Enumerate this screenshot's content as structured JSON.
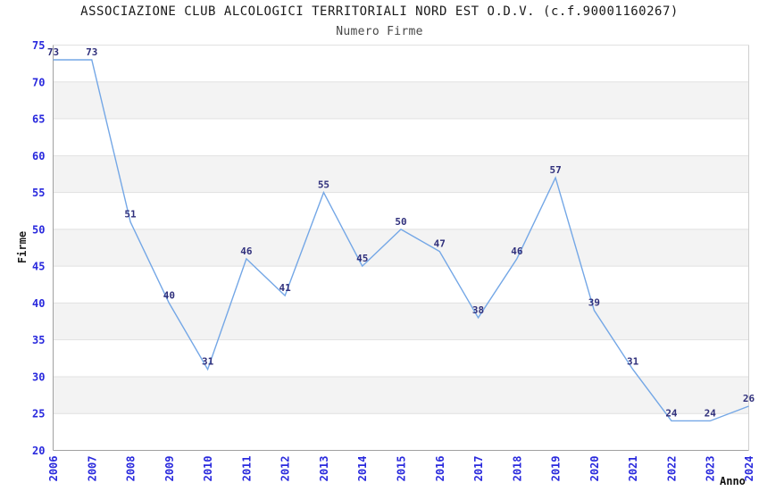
{
  "chart_data": {
    "type": "line",
    "title": "ASSOCIAZIONE CLUB ALCOLOGICI TERRITORIALI NORD EST O.D.V. (c.f.90001160267)",
    "subtitle": "Numero Firme",
    "xlabel": "Anno",
    "ylabel": "Firme",
    "x": [
      "2006",
      "2007",
      "2008",
      "2009",
      "2010",
      "2011",
      "2012",
      "2013",
      "2014",
      "2015",
      "2016",
      "2017",
      "2018",
      "2019",
      "2020",
      "2021",
      "2022",
      "2023",
      "2024"
    ],
    "series": [
      {
        "name": "Numero Firme",
        "values": [
          73,
          73,
          51,
          40,
          31,
          46,
          41,
          55,
          45,
          50,
          47,
          38,
          46,
          57,
          39,
          31,
          24,
          24,
          26
        ]
      }
    ],
    "ylim": [
      20,
      75
    ],
    "ytick_step": 5,
    "yticks": [
      20,
      25,
      30,
      35,
      40,
      45,
      50,
      55,
      60,
      65,
      70,
      75
    ],
    "grid": "horizontal-on",
    "bands": "alternating white/gray every 5 units from top",
    "legend": "none",
    "point_markers": "none",
    "data_labels": "above each point",
    "colors": {
      "line": "#74a7e6",
      "tick_label": "#2929dd",
      "data_label": "#30307c",
      "band_gray": "#f3f3f3",
      "gridline": "#e1e1e1",
      "axis_line": "#a0a0a0",
      "plot_border": "#cfcfcf",
      "title": "#1a1a1a",
      "subtitle": "#474747",
      "axis_title": "#111111",
      "background": "#ffffff"
    }
  }
}
